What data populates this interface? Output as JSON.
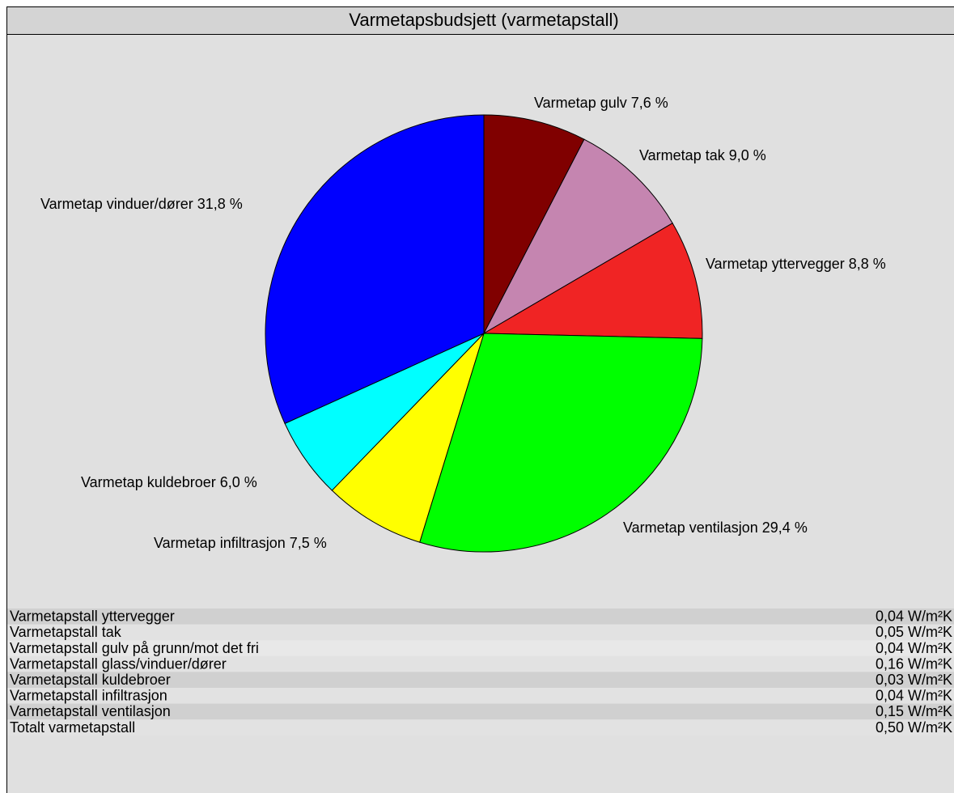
{
  "chart_data": {
    "type": "pie",
    "title": "Varmetapsbudsjett (varmetapstall)",
    "categories": [
      "Varmetap gulv",
      "Varmetap tak",
      "Varmetap yttervegger",
      "Varmetap ventilasjon",
      "Varmetap infiltrasjon",
      "Varmetap kuldebroer",
      "Varmetap vinduer/dører"
    ],
    "values": [
      7.6,
      9.0,
      8.8,
      29.4,
      7.5,
      6.0,
      31.8
    ],
    "value_labels": [
      "7,6 %",
      "9,0 %",
      "8,8 %",
      "29,4 %",
      "7,5 %",
      "6,0 %",
      "31,8 %"
    ],
    "colors": [
      "#800000",
      "#c585b0",
      "#f02424",
      "#00ff00",
      "#ffff00",
      "#00ffff",
      "#0000ff"
    ]
  },
  "table": {
    "rows": [
      [
        "Varmetapstall yttervegger",
        "0,04 W/m²K"
      ],
      [
        "Varmetapstall tak",
        "0,05 W/m²K"
      ],
      [
        "Varmetapstall gulv på grunn/mot det fri",
        "0,04 W/m²K"
      ],
      [
        "Varmetapstall glass/vinduer/dører",
        "0,16 W/m²K"
      ],
      [
        "Varmetapstall kuldebroer",
        "0,03 W/m²K"
      ],
      [
        "Varmetapstall infiltrasjon",
        "0,04 W/m²K"
      ],
      [
        "Varmetapstall ventilasjon",
        "0,15 W/m²K"
      ],
      [
        "Totalt varmetapstall",
        "0,50 W/m²K"
      ]
    ]
  }
}
